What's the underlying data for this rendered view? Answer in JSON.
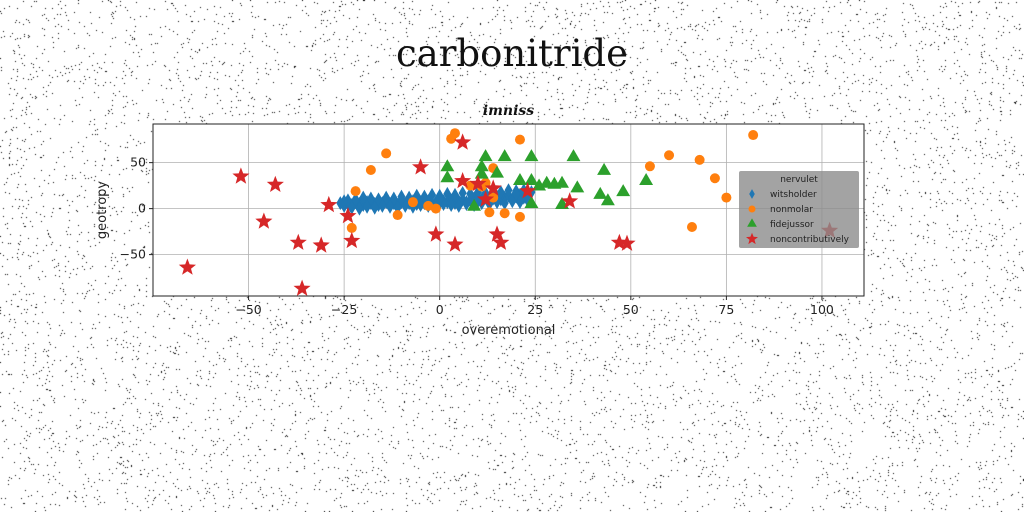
{
  "suptitle": "carbonitride",
  "chart_data": {
    "type": "scatter",
    "title": "imniss",
    "xlabel": "overemotional",
    "ylabel": "geotropy",
    "xlim": [
      -75,
      111
    ],
    "ylim": [
      -95,
      92
    ],
    "xticks": [
      -50,
      -25,
      0,
      25,
      50,
      75,
      100
    ],
    "yticks": [
      -50,
      0,
      50
    ],
    "grid": true,
    "legend": {
      "title": "nervulet",
      "placement": "right"
    },
    "colors": {
      "blue": "#1f77b4",
      "orange": "#ff7f0e",
      "green": "#2ca02c",
      "red": "#d62728"
    },
    "series": [
      {
        "name": "witsholder",
        "marker": "diamond",
        "color": "#1f77b4",
        "points": [
          [
            -25,
            3
          ],
          [
            -24,
            5
          ],
          [
            -23,
            4
          ],
          [
            -22,
            7
          ],
          [
            -21,
            5
          ],
          [
            -20,
            4
          ],
          [
            -19,
            7
          ],
          [
            -18,
            6
          ],
          [
            -17,
            5
          ],
          [
            -16,
            4
          ],
          [
            -15,
            6
          ],
          [
            -14,
            7
          ],
          [
            -13,
            5
          ],
          [
            -12,
            6
          ],
          [
            -11,
            4
          ],
          [
            -10,
            7
          ],
          [
            -9,
            5
          ],
          [
            -8,
            6
          ],
          [
            -7,
            8
          ],
          [
            -6,
            5
          ],
          [
            -5,
            7
          ],
          [
            -4,
            6
          ],
          [
            -3,
            8
          ],
          [
            -2,
            5
          ],
          [
            -1,
            7
          ],
          [
            0,
            6
          ],
          [
            1,
            8
          ],
          [
            2,
            7
          ],
          [
            3,
            9
          ],
          [
            4,
            6
          ],
          [
            5,
            8
          ],
          [
            6,
            10
          ],
          [
            7,
            7
          ],
          [
            8,
            9
          ],
          [
            9,
            11
          ],
          [
            10,
            8
          ],
          [
            11,
            10
          ],
          [
            12,
            12
          ],
          [
            13,
            9
          ],
          [
            14,
            11
          ],
          [
            15,
            13
          ],
          [
            16,
            10
          ],
          [
            17,
            12
          ],
          [
            18,
            14
          ],
          [
            19,
            11
          ],
          [
            20,
            13
          ],
          [
            21,
            15
          ],
          [
            22,
            12
          ],
          [
            23,
            14
          ],
          [
            -24,
            9
          ],
          [
            -22,
            10
          ],
          [
            -20,
            9
          ],
          [
            -18,
            11
          ],
          [
            -16,
            10
          ],
          [
            -14,
            12
          ],
          [
            -12,
            11
          ],
          [
            -10,
            13
          ],
          [
            -8,
            12
          ],
          [
            -6,
            14
          ],
          [
            -4,
            13
          ],
          [
            -2,
            15
          ],
          [
            0,
            14
          ],
          [
            2,
            16
          ],
          [
            4,
            15
          ],
          [
            6,
            17
          ],
          [
            8,
            16
          ],
          [
            10,
            18
          ],
          [
            12,
            17
          ],
          [
            14,
            19
          ],
          [
            16,
            18
          ],
          [
            18,
            20
          ],
          [
            20,
            19
          ],
          [
            -23,
            1
          ],
          [
            -21,
            0
          ],
          [
            -19,
            2
          ],
          [
            -17,
            1
          ],
          [
            -15,
            3
          ],
          [
            -13,
            2
          ],
          [
            -11,
            1
          ],
          [
            -9,
            3
          ],
          [
            -7,
            2
          ],
          [
            -5,
            4
          ],
          [
            -3,
            3
          ],
          [
            -1,
            4
          ],
          [
            1,
            5
          ],
          [
            3,
            4
          ],
          [
            5,
            3
          ],
          [
            7,
            5
          ],
          [
            9,
            4
          ],
          [
            11,
            6
          ],
          [
            13,
            5
          ],
          [
            15,
            7
          ],
          [
            17,
            6
          ],
          [
            19,
            8
          ],
          [
            21,
            7
          ],
          [
            23,
            9
          ],
          [
            -25,
            8
          ],
          [
            -20,
            12
          ],
          [
            -10,
            10
          ],
          [
            0,
            10
          ],
          [
            10,
            12
          ],
          [
            20,
            16
          ],
          [
            24,
            18
          ],
          [
            22,
            20
          ],
          [
            -26,
            6
          ]
        ]
      },
      {
        "name": "nonmolar",
        "marker": "circle",
        "color": "#ff7f0e",
        "points": [
          [
            4,
            82
          ],
          [
            3,
            76
          ],
          [
            21,
            75
          ],
          [
            -14,
            60
          ],
          [
            -18,
            42
          ],
          [
            -22,
            19
          ],
          [
            -7,
            7
          ],
          [
            -11,
            -7
          ],
          [
            -3,
            3
          ],
          [
            -1,
            0
          ],
          [
            8,
            25
          ],
          [
            12,
            28
          ],
          [
            14,
            44
          ],
          [
            13,
            -4
          ],
          [
            17,
            -5
          ],
          [
            21,
            -9
          ],
          [
            -23,
            -21
          ],
          [
            55,
            46
          ],
          [
            60,
            58
          ],
          [
            68,
            53
          ],
          [
            72,
            33
          ],
          [
            75,
            12
          ],
          [
            82,
            80
          ],
          [
            66,
            -20
          ],
          [
            14,
            12
          ],
          [
            11,
            24
          ]
        ]
      },
      {
        "name": "fidejussor",
        "marker": "triangle",
        "color": "#2ca02c",
        "points": [
          [
            2,
            45
          ],
          [
            2,
            33
          ],
          [
            11,
            37
          ],
          [
            11,
            45
          ],
          [
            12,
            56
          ],
          [
            17,
            56
          ],
          [
            15,
            38
          ],
          [
            24,
            56
          ],
          [
            21,
            30
          ],
          [
            24,
            30
          ],
          [
            26,
            24
          ],
          [
            28,
            27
          ],
          [
            30,
            26
          ],
          [
            32,
            27
          ],
          [
            35,
            56
          ],
          [
            36,
            22
          ],
          [
            43,
            41
          ],
          [
            42,
            15
          ],
          [
            44,
            8
          ],
          [
            48,
            18
          ],
          [
            24,
            5
          ],
          [
            32,
            4
          ],
          [
            54,
            30
          ],
          [
            9,
            2
          ]
        ]
      },
      {
        "name": "noncontributively",
        "marker": "star",
        "color": "#d62728",
        "points": [
          [
            -52,
            35
          ],
          [
            -43,
            26
          ],
          [
            -46,
            -14
          ],
          [
            -37,
            -37
          ],
          [
            -31,
            -40
          ],
          [
            -29,
            4
          ],
          [
            -24,
            -8
          ],
          [
            -23,
            -35
          ],
          [
            -36,
            -87
          ],
          [
            -66,
            -64
          ],
          [
            -5,
            45
          ],
          [
            -1,
            -28
          ],
          [
            4,
            -39
          ],
          [
            6,
            30
          ],
          [
            6,
            72
          ],
          [
            10,
            27
          ],
          [
            12,
            10
          ],
          [
            14,
            22
          ],
          [
            15,
            -28
          ],
          [
            16,
            -37
          ],
          [
            23,
            19
          ],
          [
            34,
            8
          ],
          [
            47,
            -37
          ],
          [
            49,
            -38
          ],
          [
            102,
            -24
          ]
        ]
      }
    ]
  }
}
